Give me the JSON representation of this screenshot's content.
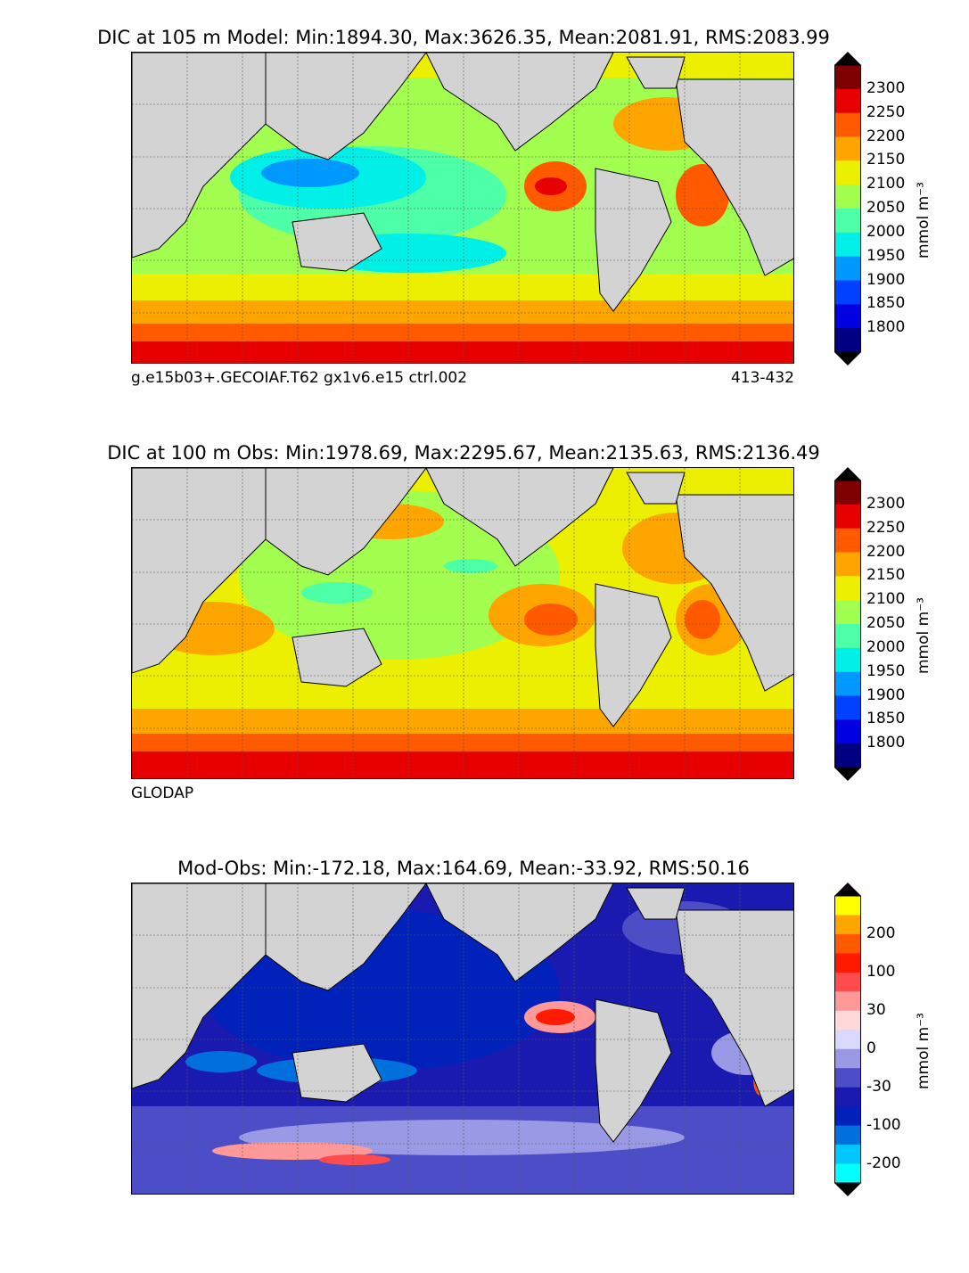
{
  "panels": [
    {
      "title": "DIC at 105 m Model: Min:1894.30, Max:3626.35, Mean:2081.91, RMS:2083.99",
      "caption_left": "g.e15b03+.GECOIAF.T62 gx1v6.e15 ctrl.002",
      "caption_right": "413-432",
      "colorbar_unit": "mmol m⁻³",
      "colorbar_ticks": [
        "2300",
        "2250",
        "2200",
        "2150",
        "2100",
        "2050",
        "2000",
        "1950",
        "1900",
        "1850",
        "1800"
      ],
      "colorbar_colors": [
        "#7f0000",
        "#e60000",
        "#ff5a00",
        "#ffa500",
        "#ecf000",
        "#a3ff4f",
        "#4dffa6",
        "#00f0e8",
        "#0099ff",
        "#0040ff",
        "#0000e0",
        "#000080"
      ]
    },
    {
      "title": "DIC at 100 m Obs: Min:1978.69, Max:2295.67, Mean:2135.63, RMS:2136.49",
      "caption_left": "GLODAP",
      "caption_right": "",
      "colorbar_unit": "mmol m⁻³",
      "colorbar_ticks": [
        "2300",
        "2250",
        "2200",
        "2150",
        "2100",
        "2050",
        "2000",
        "1950",
        "1900",
        "1850",
        "1800"
      ],
      "colorbar_colors": [
        "#7f0000",
        "#e60000",
        "#ff5a00",
        "#ffa500",
        "#ecf000",
        "#a3ff4f",
        "#4dffa6",
        "#00f0e8",
        "#0099ff",
        "#0040ff",
        "#0000e0",
        "#000080"
      ]
    },
    {
      "title": "Mod-Obs: Min:-172.18, Max:164.69, Mean:-33.92, RMS:50.16",
      "caption_left": "",
      "caption_right": "",
      "colorbar_unit": "mmol m⁻³",
      "colorbar_ticks": [
        "200",
        "100",
        "30",
        "0",
        "-30",
        "-100",
        "-200"
      ],
      "colorbar_colors": [
        "#ffff00",
        "#ffa500",
        "#ff5a00",
        "#ff1a00",
        "#ff4d4d",
        "#ff9999",
        "#ffd9d9",
        "#d9d9ff",
        "#9999e6",
        "#4d4dc8",
        "#1a1ab0",
        "#0022bb",
        "#0070dd",
        "#00c8ff",
        "#00ffff"
      ]
    }
  ]
}
